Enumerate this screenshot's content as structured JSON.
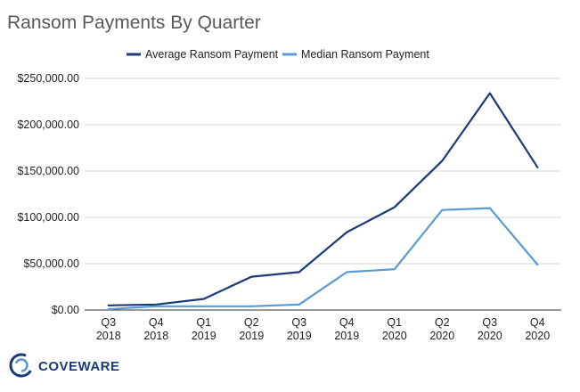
{
  "chart_data": {
    "type": "line",
    "title": "Ransom Payments By Quarter",
    "xlabel": "",
    "ylabel": "",
    "categories": [
      [
        "Q3",
        "2018"
      ],
      [
        "Q4",
        "2018"
      ],
      [
        "Q1",
        "2019"
      ],
      [
        "Q2",
        "2019"
      ],
      [
        "Q3",
        "2019"
      ],
      [
        "Q4",
        "2019"
      ],
      [
        "Q1",
        "2020"
      ],
      [
        "Q2",
        "2020"
      ],
      [
        "Q3",
        "2020"
      ],
      [
        "Q4",
        "2020"
      ]
    ],
    "ylim": [
      0,
      250000
    ],
    "yticks": [
      0,
      50000,
      100000,
      150000,
      200000,
      250000
    ],
    "ytick_labels": [
      "$0.00",
      "$50,000.00",
      "$100,000.00",
      "$150,000.00",
      "$200,000.00",
      "$250,000.00"
    ],
    "grid": true,
    "legend_position": "top",
    "series": [
      {
        "name": "Average Ransom Payment",
        "color": "#1a3a7a",
        "values": [
          5000,
          6000,
          12000,
          36000,
          41000,
          84000,
          111000,
          161000,
          234000,
          154000
        ]
      },
      {
        "name": "Median Ransom Payment",
        "color": "#5b9bd5",
        "values": [
          1000,
          4000,
          4000,
          4000,
          6000,
          41000,
          44000,
          108000,
          110000,
          49000
        ]
      }
    ]
  },
  "logo": {
    "text": "COVEWARE",
    "color": "#1a3a7a"
  }
}
